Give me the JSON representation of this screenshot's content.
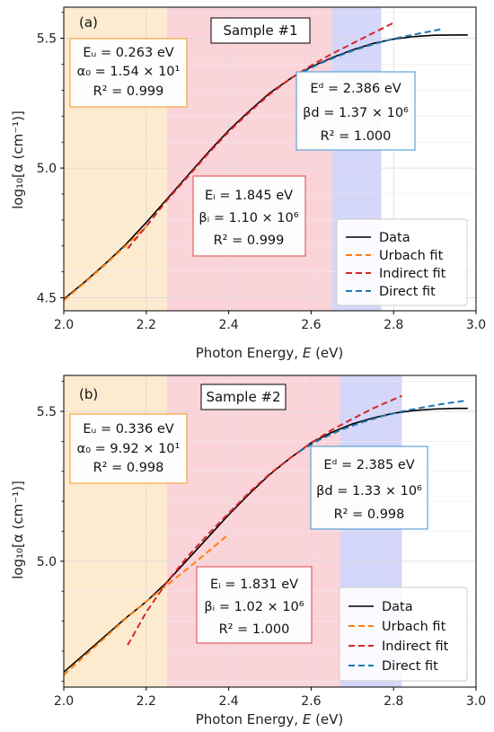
{
  "chart_data": [
    {
      "type": "line",
      "panel_tag": "(a)",
      "title": "Sample #1",
      "xlabel_parts": [
        "Photon Energy, ",
        "E",
        " (eV)"
      ],
      "ylabel": "log₁₀[α (cm⁻¹)]",
      "xlim": [
        2.0,
        3.0
      ],
      "ylim": [
        4.45,
        5.62
      ],
      "xticks": [
        2.0,
        2.2,
        2.4,
        2.6,
        2.8,
        3.0
      ],
      "xtick_labels": [
        "2.0",
        "2.2",
        "2.4",
        "2.6",
        "2.8",
        "3.0"
      ],
      "yticks": [
        4.5,
        5.0,
        5.5
      ],
      "ytick_labels": [
        "4.5",
        "5.0",
        "5.5"
      ],
      "grid": true,
      "regions": [
        {
          "x": [
            2.0,
            2.25
          ],
          "color": "#fdebd0"
        },
        {
          "x": [
            2.25,
            2.65
          ],
          "color": "#fbd4d9"
        },
        {
          "x": [
            2.65,
            2.77
          ],
          "color": "#d4d6fa"
        }
      ],
      "series": [
        {
          "name": "Data",
          "color": "#000000",
          "dash": false,
          "x": [
            2.0,
            2.05,
            2.1,
            2.15,
            2.2,
            2.25,
            2.3,
            2.35,
            2.4,
            2.45,
            2.5,
            2.55,
            2.6,
            2.65,
            2.7,
            2.75,
            2.8,
            2.85,
            2.9,
            2.95,
            2.98
          ],
          "y": [
            4.495,
            4.56,
            4.63,
            4.705,
            4.79,
            4.88,
            4.97,
            5.06,
            5.145,
            5.22,
            5.29,
            5.345,
            5.39,
            5.425,
            5.455,
            5.48,
            5.497,
            5.507,
            5.512,
            5.513,
            5.513
          ]
        },
        {
          "name": "Urbach fit",
          "color": "#ff7f0e",
          "dash": true,
          "x": [
            2.0,
            2.05,
            2.1,
            2.15,
            2.2
          ],
          "y": [
            4.49,
            4.557,
            4.627,
            4.7,
            4.775
          ]
        },
        {
          "name": "Indirect fit",
          "color": "#d62728",
          "dash": true,
          "x": [
            2.155,
            2.2,
            2.25,
            2.3,
            2.35,
            2.4,
            2.45,
            2.5,
            2.55,
            2.6,
            2.65,
            2.7,
            2.75,
            2.8
          ],
          "y": [
            4.69,
            4.775,
            4.875,
            4.965,
            5.055,
            5.14,
            5.215,
            5.285,
            5.345,
            5.395,
            5.44,
            5.48,
            5.52,
            5.56
          ]
        },
        {
          "name": "Direct fit",
          "color": "#1f77b4",
          "dash": true,
          "x": [
            2.58,
            2.62,
            2.66,
            2.7,
            2.74,
            2.78,
            2.82,
            2.86,
            2.9,
            2.92
          ],
          "y": [
            5.37,
            5.402,
            5.428,
            5.452,
            5.472,
            5.49,
            5.505,
            5.518,
            5.53,
            5.537
          ]
        }
      ],
      "legend": {
        "position": "lower right",
        "entries": [
          "Data",
          "Urbach fit",
          "Indirect fit",
          "Direct fit"
        ]
      },
      "annotations": [
        {
          "id": "urbach",
          "border": "#f5a742",
          "lines": [
            "Eᵤ = 0.263 eV",
            "α₀ = 1.54 × 10¹",
            "R² = 0.999"
          ]
        },
        {
          "id": "indirect",
          "border": "#e06060",
          "lines": [
            "Eᵢ = 1.845 eV",
            "βᵢ = 1.10 × 10⁶",
            "R² = 0.999"
          ]
        },
        {
          "id": "direct",
          "border": "#5ba3d8",
          "lines": [
            "Eᵈ = 2.386 eV",
            "βd = 1.37 × 10⁶",
            "R² = 1.000"
          ]
        }
      ]
    },
    {
      "type": "line",
      "panel_tag": "(b)",
      "title": "Sample #2",
      "xlabel_parts": [
        "Photon Energy, ",
        "E",
        " (eV)"
      ],
      "ylabel": "log₁₀[α (cm⁻¹)]",
      "xlim": [
        2.0,
        3.0
      ],
      "ylim": [
        4.58,
        5.62
      ],
      "xticks": [
        2.0,
        2.2,
        2.4,
        2.6,
        2.8,
        3.0
      ],
      "xtick_labels": [
        "2.0",
        "2.2",
        "2.4",
        "2.6",
        "2.8",
        "3.0"
      ],
      "yticks": [
        5.0,
        5.5
      ],
      "ytick_labels": [
        "5.0",
        "5.5"
      ],
      "grid": true,
      "regions": [
        {
          "x": [
            2.0,
            2.25
          ],
          "color": "#fdebd0"
        },
        {
          "x": [
            2.25,
            2.67
          ],
          "color": "#fbd4d9"
        },
        {
          "x": [
            2.67,
            2.82
          ],
          "color": "#d4d6fa"
        }
      ],
      "series": [
        {
          "name": "Data",
          "color": "#000000",
          "dash": false,
          "x": [
            2.0,
            2.05,
            2.1,
            2.15,
            2.2,
            2.25,
            2.3,
            2.35,
            2.4,
            2.45,
            2.5,
            2.55,
            2.6,
            2.65,
            2.7,
            2.75,
            2.8,
            2.85,
            2.9,
            2.95,
            2.98
          ],
          "y": [
            4.63,
            4.69,
            4.75,
            4.81,
            4.865,
            4.93,
            5.005,
            5.08,
            5.155,
            5.225,
            5.29,
            5.345,
            5.395,
            5.43,
            5.458,
            5.478,
            5.494,
            5.503,
            5.508,
            5.51,
            5.51
          ]
        },
        {
          "name": "Urbach fit",
          "color": "#ff7f0e",
          "dash": true,
          "x": [
            2.0,
            2.05,
            2.1,
            2.15,
            2.2,
            2.25,
            2.3,
            2.35,
            2.4
          ],
          "y": [
            4.62,
            4.683,
            4.745,
            4.808,
            4.865,
            4.92,
            4.975,
            5.032,
            5.09
          ]
        },
        {
          "name": "Indirect fit",
          "color": "#d62728",
          "dash": true,
          "x": [
            2.155,
            2.2,
            2.25,
            2.3,
            2.35,
            2.4,
            2.45,
            2.5,
            2.55,
            2.6,
            2.65,
            2.7,
            2.75,
            2.8,
            2.82
          ],
          "y": [
            4.72,
            4.83,
            4.93,
            5.015,
            5.09,
            5.16,
            5.23,
            5.292,
            5.345,
            5.395,
            5.438,
            5.475,
            5.51,
            5.54,
            5.552
          ]
        },
        {
          "name": "Direct fit",
          "color": "#1f77b4",
          "dash": true,
          "x": [
            2.57,
            2.62,
            2.67,
            2.72,
            2.77,
            2.82,
            2.87,
            2.92,
            2.97
          ],
          "y": [
            5.365,
            5.405,
            5.437,
            5.462,
            5.483,
            5.5,
            5.513,
            5.525,
            5.535
          ]
        }
      ],
      "legend": {
        "position": "lower right",
        "entries": [
          "Data",
          "Urbach fit",
          "Indirect fit",
          "Direct fit"
        ]
      },
      "annotations": [
        {
          "id": "urbach",
          "border": "#f5a742",
          "lines": [
            "Eᵤ = 0.336 eV",
            "α₀ = 9.92 × 10¹",
            "R² = 0.998"
          ]
        },
        {
          "id": "indirect",
          "border": "#e06060",
          "lines": [
            "Eᵢ = 1.831 eV",
            "βᵢ = 1.02 × 10⁶",
            "R² = 1.000"
          ]
        },
        {
          "id": "direct",
          "border": "#5ba3d8",
          "lines": [
            "Eᵈ = 2.385 eV",
            "βd = 1.33 × 10⁶",
            "R² = 0.998"
          ]
        }
      ]
    }
  ]
}
